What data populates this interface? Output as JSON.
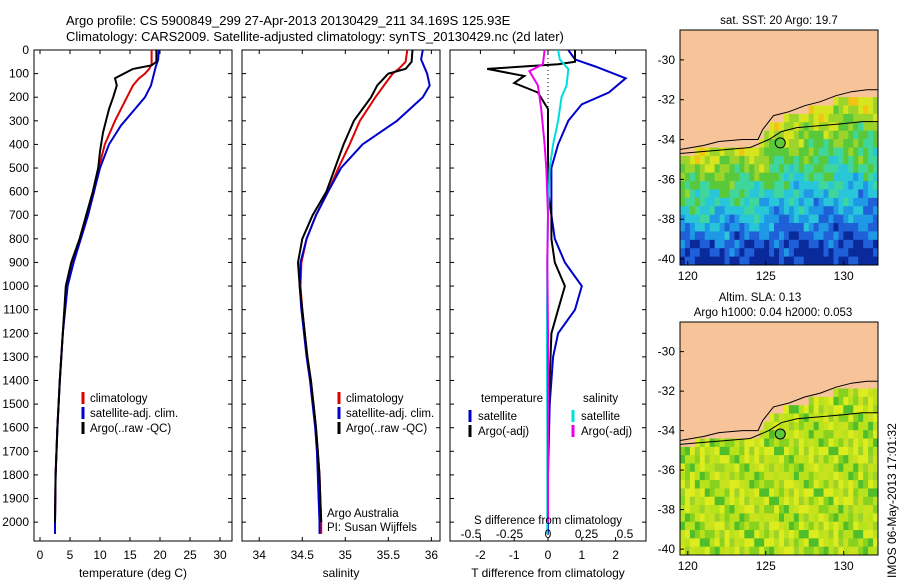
{
  "title_line1": "Argo profile: CS 5900849_299 27-Apr-2013 20130429_211 34.169S 125.93E",
  "title_line2": "Climatology: CARS2009. Satellite-adjusted climatology: synTS_20130429.nc (2d later)",
  "side_stamp": "IMOS 06-May-2013 17:01:32",
  "colors": {
    "climatology": "#dd0000",
    "satellite": "#0000cc",
    "argo": "#000000",
    "salinity_sat": "#00dddd",
    "salinity_argo": "#ee00ee",
    "land": "#f7c49a"
  },
  "legend": {
    "climatology": "climatology",
    "satellite_adj": "satellite-adj. clim.",
    "argo_raw": "Argo(..raw -QC)",
    "temperature": "temperature",
    "salinity": "salinity",
    "satellite": "satellite",
    "argo_adj": "Argo(-adj)"
  },
  "credits": {
    "line1": "Argo Australia",
    "line2": "PI: Susan Wijffels"
  },
  "panel4_annot": "S difference from climatology",
  "maps": {
    "sst_title": "sat. SST: 20 Argo: 19.7",
    "sla_title1": "Altim. SLA: 0.13",
    "sla_title2": "Argo h1000: 0.04 h2000: 0.053",
    "lon_ticks": [
      "120",
      "125",
      "130"
    ],
    "lat_ticks": [
      "-30",
      "-32",
      "-34",
      "-36",
      "-38",
      "-40"
    ],
    "lon_range": [
      119.5,
      132.2
    ],
    "lat_range": [
      -40.3,
      -28.5
    ],
    "float_position": {
      "lon": 125.93,
      "lat": -34.169
    },
    "coast": [
      [
        119.5,
        -34.5
      ],
      [
        121,
        -34.3
      ],
      [
        122,
        -34.1
      ],
      [
        123.5,
        -34
      ],
      [
        124.5,
        -34
      ],
      [
        124.8,
        -33.5
      ],
      [
        125.5,
        -32.8
      ],
      [
        126.5,
        -32.6
      ],
      [
        127.5,
        -32.3
      ],
      [
        128.5,
        -32.1
      ],
      [
        129.5,
        -31.8
      ],
      [
        130.5,
        -31.6
      ],
      [
        131.5,
        -31.5
      ],
      [
        132.2,
        -31.5
      ]
    ],
    "shelf": [
      [
        119.5,
        -34.7
      ],
      [
        121,
        -34.6
      ],
      [
        122.5,
        -34.5
      ],
      [
        124,
        -34.4
      ],
      [
        125.2,
        -34
      ],
      [
        126,
        -33.6
      ],
      [
        127,
        -33.4
      ],
      [
        128.5,
        -33.3
      ],
      [
        130,
        -33.2
      ],
      [
        131.2,
        -33.1
      ],
      [
        132.2,
        -33.1
      ]
    ]
  },
  "chart_data": [
    {
      "type": "line",
      "xlabel": "temperature (deg C)",
      "xlim": [
        -1,
        32
      ],
      "xticks": [
        "0",
        "5",
        "10",
        "15",
        "20",
        "25",
        "30"
      ],
      "ylim": [
        2080,
        0
      ],
      "yticks": [
        "0",
        "100",
        "200",
        "300",
        "400",
        "500",
        "600",
        "700",
        "800",
        "900",
        "1000",
        "1100",
        "1200",
        "1300",
        "1400",
        "1500",
        "1600",
        "1700",
        "1800",
        "1900",
        "2000"
      ],
      "series": [
        {
          "name": "climatology",
          "color": "#dd0000",
          "points": [
            [
              18.6,
              0
            ],
            [
              18.6,
              60
            ],
            [
              18.2,
              80
            ],
            [
              17.5,
              100
            ],
            [
              16.5,
              120
            ],
            [
              15.5,
              150
            ],
            [
              14.5,
              200
            ],
            [
              12.5,
              300
            ],
            [
              10.8,
              400
            ],
            [
              9.8,
              500
            ],
            [
              9,
              600
            ],
            [
              8,
              700
            ],
            [
              6.8,
              800
            ],
            [
              5.5,
              900
            ],
            [
              4.5,
              1000
            ],
            [
              3.8,
              1200
            ],
            [
              3.3,
              1400
            ],
            [
              2.9,
              1600
            ],
            [
              2.6,
              1800
            ],
            [
              2.5,
              2000
            ],
            [
              2.5,
              2050
            ]
          ]
        },
        {
          "name": "satellite-adj. clim.",
          "color": "#0000cc",
          "points": [
            [
              19.8,
              0
            ],
            [
              19.7,
              40
            ],
            [
              19.3,
              70
            ],
            [
              19,
              100
            ],
            [
              18.5,
              150
            ],
            [
              17.5,
              200
            ],
            [
              15.5,
              260
            ],
            [
              13.5,
              320
            ],
            [
              11.5,
              400
            ],
            [
              10,
              500
            ],
            [
              9,
              600
            ],
            [
              8,
              700
            ],
            [
              6.8,
              800
            ],
            [
              5.6,
              900
            ],
            [
              4.6,
              1000
            ],
            [
              3.8,
              1200
            ],
            [
              3.3,
              1400
            ],
            [
              2.9,
              1600
            ],
            [
              2.6,
              1800
            ],
            [
              2.5,
              2000
            ],
            [
              2.5,
              2050
            ]
          ]
        },
        {
          "name": "Argo(..raw -QC)",
          "color": "#000000",
          "points": [
            [
              19.4,
              0
            ],
            [
              19.4,
              50
            ],
            [
              18.6,
              65
            ],
            [
              15.5,
              80
            ],
            [
              12.5,
              120
            ],
            [
              12.8,
              150
            ],
            [
              12.2,
              200
            ],
            [
              11.5,
              250
            ],
            [
              10.5,
              350
            ],
            [
              10,
              430
            ],
            [
              9.7,
              500
            ],
            [
              8.8,
              600
            ],
            [
              7.7,
              700
            ],
            [
              6.6,
              800
            ],
            [
              5.2,
              900
            ],
            [
              4.3,
              1000
            ],
            [
              3.8,
              1200
            ],
            [
              3.3,
              1400
            ],
            [
              2.9,
              1600
            ],
            [
              2.6,
              1800
            ],
            [
              2.5,
              2000
            ]
          ]
        }
      ]
    },
    {
      "type": "line",
      "xlabel": "salinity",
      "xlim": [
        33.8,
        36.1
      ],
      "xticks": [
        "34",
        "34.5",
        "35",
        "35.5",
        "36"
      ],
      "ylim": [
        2080,
        0
      ],
      "series": [
        {
          "name": "climatology",
          "color": "#dd0000",
          "points": [
            [
              35.72,
              0
            ],
            [
              35.7,
              50
            ],
            [
              35.62,
              80
            ],
            [
              35.55,
              100
            ],
            [
              35.45,
              150
            ],
            [
              35.35,
              200
            ],
            [
              35.17,
              300
            ],
            [
              35.05,
              400
            ],
            [
              34.92,
              500
            ],
            [
              34.8,
              600
            ],
            [
              34.66,
              700
            ],
            [
              34.55,
              800
            ],
            [
              34.49,
              900
            ],
            [
              34.48,
              1000
            ],
            [
              34.5,
              1100
            ],
            [
              34.53,
              1200
            ],
            [
              34.56,
              1300
            ],
            [
              34.6,
              1400
            ],
            [
              34.63,
              1500
            ],
            [
              34.66,
              1600
            ],
            [
              34.68,
              1700
            ],
            [
              34.7,
              1800
            ],
            [
              34.71,
              1900
            ],
            [
              34.72,
              2000
            ],
            [
              34.72,
              2050
            ]
          ]
        },
        {
          "name": "satellite-adj. clim.",
          "color": "#0000cc",
          "points": [
            [
              35.9,
              0
            ],
            [
              35.88,
              40
            ],
            [
              35.95,
              100
            ],
            [
              35.98,
              150
            ],
            [
              35.9,
              200
            ],
            [
              35.6,
              300
            ],
            [
              35.2,
              400
            ],
            [
              34.95,
              500
            ],
            [
              34.8,
              600
            ],
            [
              34.66,
              700
            ],
            [
              34.55,
              800
            ],
            [
              34.48,
              900
            ],
            [
              34.47,
              1000
            ],
            [
              34.49,
              1100
            ],
            [
              34.52,
              1200
            ],
            [
              34.55,
              1300
            ],
            [
              34.59,
              1400
            ],
            [
              34.62,
              1500
            ],
            [
              34.65,
              1600
            ],
            [
              34.67,
              1700
            ],
            [
              34.68,
              1800
            ],
            [
              34.69,
              1900
            ],
            [
              34.7,
              2000
            ],
            [
              34.7,
              2050
            ]
          ]
        },
        {
          "name": "Argo(..raw -QC)",
          "color": "#000000",
          "points": [
            [
              35.78,
              0
            ],
            [
              35.77,
              50
            ],
            [
              35.7,
              80
            ],
            [
              35.5,
              100
            ],
            [
              35.37,
              150
            ],
            [
              35.3,
              200
            ],
            [
              35.1,
              300
            ],
            [
              34.98,
              400
            ],
            [
              34.88,
              500
            ],
            [
              34.78,
              600
            ],
            [
              34.62,
              700
            ],
            [
              34.5,
              800
            ],
            [
              34.45,
              900
            ],
            [
              34.47,
              1000
            ],
            [
              34.5,
              1100
            ],
            [
              34.53,
              1200
            ],
            [
              34.56,
              1300
            ],
            [
              34.6,
              1400
            ],
            [
              34.63,
              1500
            ],
            [
              34.66,
              1600
            ],
            [
              34.68,
              1700
            ],
            [
              34.7,
              1800
            ],
            [
              34.71,
              1900
            ],
            [
              34.72,
              2000
            ]
          ]
        }
      ]
    },
    {
      "type": "line",
      "xlabel": "T difference from climatology",
      "xlim": [
        -2.9,
        2.9
      ],
      "xticks": [
        "-2",
        "-1",
        "0",
        "1",
        "2"
      ],
      "sticks": [
        "-0.5",
        "-0.25",
        "0",
        "0.25",
        "0.5"
      ],
      "ylim": [
        2080,
        0
      ],
      "series": [
        {
          "name": "temperature satellite",
          "color": "#0000cc",
          "points": [
            [
              0.6,
              0
            ],
            [
              0.8,
              40
            ],
            [
              1.4,
              70
            ],
            [
              2.3,
              120
            ],
            [
              1.8,
              180
            ],
            [
              1,
              230
            ],
            [
              0.6,
              300
            ],
            [
              0.3,
              400
            ],
            [
              0.1,
              500
            ],
            [
              0.1,
              600
            ],
            [
              0.1,
              700
            ],
            [
              0.2,
              800
            ],
            [
              0.5,
              900
            ],
            [
              1,
              1000
            ],
            [
              0.8,
              1100
            ],
            [
              0.3,
              1200
            ],
            [
              0.15,
              1300
            ],
            [
              0.05,
              1500
            ],
            [
              0,
              1800
            ],
            [
              0,
              2050
            ]
          ]
        },
        {
          "name": "temperature Argo(-adj)",
          "color": "#000000",
          "points": [
            [
              0.8,
              0
            ],
            [
              0.8,
              50
            ],
            [
              0.3,
              60
            ],
            [
              -1.8,
              80
            ],
            [
              -0.7,
              110
            ],
            [
              -1,
              140
            ],
            [
              -0.3,
              180
            ],
            [
              0,
              250
            ],
            [
              0,
              400
            ],
            [
              0,
              600
            ],
            [
              0.1,
              700
            ],
            [
              0.1,
              800
            ],
            [
              0.2,
              900
            ],
            [
              0.5,
              1000
            ],
            [
              0.3,
              1100
            ],
            [
              0.1,
              1200
            ],
            [
              0.05,
              1400
            ],
            [
              0,
              1700
            ],
            [
              0,
              2000
            ]
          ]
        },
        {
          "name": "salinity satellite",
          "color": "#00dddd",
          "points": [
            [
              0.3,
              0
            ],
            [
              0.35,
              40
            ],
            [
              0.6,
              80
            ],
            [
              0.55,
              150
            ],
            [
              0.4,
              200
            ],
            [
              0.3,
              300
            ],
            [
              0.15,
              400
            ],
            [
              0.05,
              500
            ],
            [
              0,
              700
            ],
            [
              -0.02,
              900
            ],
            [
              -0.03,
              1100
            ],
            [
              -0.03,
              1300
            ],
            [
              -0.02,
              1600
            ],
            [
              -0.02,
              2050
            ]
          ]
        },
        {
          "name": "salinity Argo(-adj)",
          "color": "#ee00ee",
          "points": [
            [
              -0.1,
              0
            ],
            [
              -0.15,
              60
            ],
            [
              -0.55,
              90
            ],
            [
              -0.3,
              150
            ],
            [
              -0.2,
              250
            ],
            [
              -0.1,
              400
            ],
            [
              -0.05,
              500
            ],
            [
              0,
              700
            ],
            [
              -0.02,
              900
            ],
            [
              0,
              1200
            ],
            [
              0,
              1600
            ],
            [
              0,
              2000
            ]
          ]
        }
      ]
    }
  ]
}
